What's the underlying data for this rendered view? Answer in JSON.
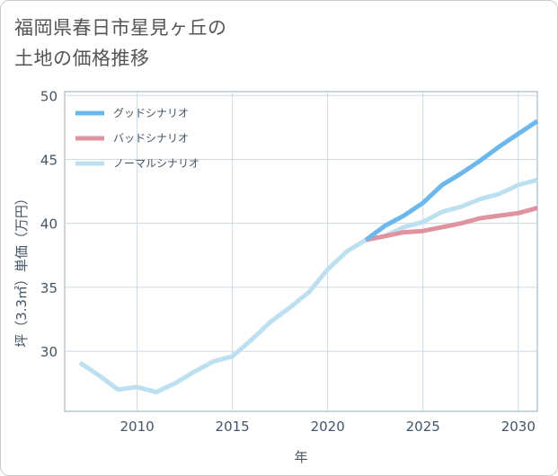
{
  "title": "福岡県春日市星見ヶ丘の\n土地の価格推移",
  "chart_data": {
    "type": "line",
    "xlabel": "年",
    "ylabel": "坪（3.3㎡）単価（万円）",
    "xlim": [
      2006.2,
      2031
    ],
    "ylim": [
      25.3,
      50.3
    ],
    "xticks": [
      "2010",
      "2015",
      "2020",
      "2025",
      "2030"
    ],
    "yticks": [
      "30",
      "35",
      "40",
      "45",
      "50"
    ],
    "grid": true,
    "legend_position": "top-left",
    "series": [
      {
        "name": "グッドシナリオ",
        "color": "#6cb8ec",
        "x": [
          2022,
          2023,
          2024,
          2025,
          2026,
          2027,
          2028,
          2029,
          2030,
          2031
        ],
        "y": [
          38.7,
          39.8,
          40.6,
          41.6,
          43.0,
          43.9,
          44.9,
          46.0,
          47.0,
          48.0
        ]
      },
      {
        "name": "バッドシナリオ",
        "color": "#e0939e",
        "x": [
          2022,
          2023,
          2024,
          2025,
          2026,
          2027,
          2028,
          2029,
          2030,
          2031
        ],
        "y": [
          38.7,
          39.0,
          39.3,
          39.4,
          39.7,
          40.0,
          40.4,
          40.6,
          40.8,
          41.2
        ]
      },
      {
        "name": "ノーマルシナリオ",
        "color": "#bde0f0",
        "x": [
          2007,
          2008,
          2009,
          2010,
          2011,
          2012,
          2013,
          2014,
          2015,
          2016,
          2017,
          2018,
          2019,
          2020,
          2021,
          2022,
          2023,
          2024,
          2025,
          2026,
          2027,
          2028,
          2029,
          2030,
          2031
        ],
        "y": [
          29.1,
          28.1,
          27.0,
          27.2,
          26.8,
          27.5,
          28.4,
          29.2,
          29.6,
          30.9,
          32.3,
          33.4,
          34.6,
          36.4,
          37.8,
          38.7,
          39.0,
          39.7,
          40.1,
          40.9,
          41.3,
          41.9,
          42.3,
          43.0,
          43.4
        ]
      }
    ]
  }
}
